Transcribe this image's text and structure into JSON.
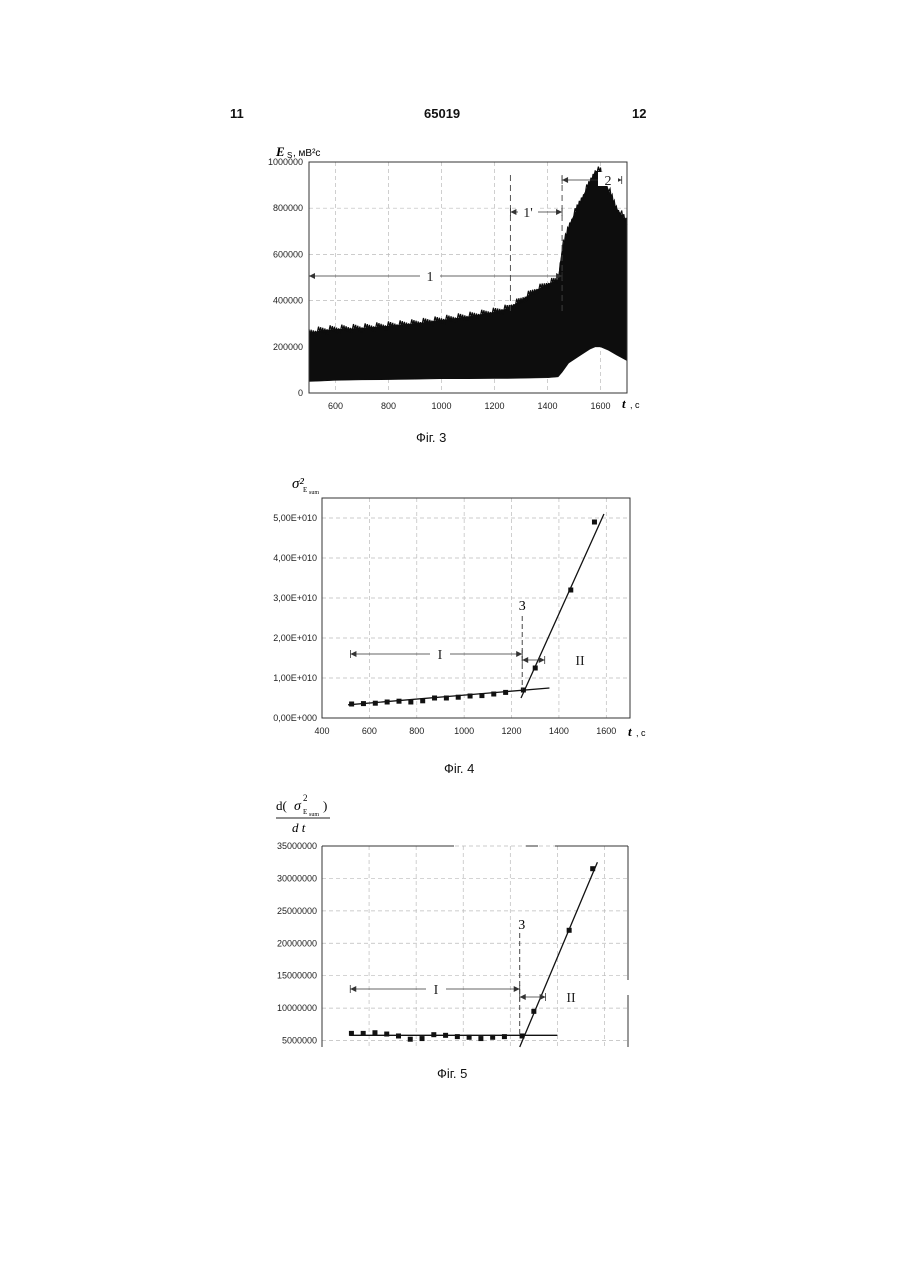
{
  "header": {
    "page_left": "11",
    "patent_number": "65019",
    "page_right": "12"
  },
  "chart_data": [
    {
      "type": "area",
      "ylabel_main": "E",
      "ylabel_sub": "S",
      "ylabel_unit": ", мВ²с",
      "xlabel": "t",
      "xunit": ", с",
      "xlim": [
        500,
        1700
      ],
      "ylim": [
        0,
        1000000
      ],
      "x_ticks": [
        600,
        800,
        1000,
        1200,
        1400,
        1600
      ],
      "y_ticks": [
        0,
        200000,
        400000,
        600000,
        800000,
        1000000
      ],
      "y_tick_labels": [
        "0",
        "200000",
        "400000",
        "600000",
        "800000",
        "1000000"
      ],
      "x_tick_labels": [
        "600",
        "800",
        "1000",
        "1200",
        "1400",
        "1600"
      ],
      "grid": true,
      "series": [
        {
          "x": [
            500,
            550,
            600,
            700,
            800,
            900,
            1000,
            1100,
            1200,
            1250,
            1300,
            1350,
            1400,
            1440,
            1455,
            1480,
            1520,
            1560,
            1580,
            1600,
            1630,
            1660,
            1700
          ],
          "upper": [
            260000,
            270000,
            275000,
            280000,
            290000,
            300000,
            315000,
            330000,
            350000,
            365000,
            400000,
            440000,
            470000,
            490000,
            620000,
            720000,
            820000,
            910000,
            960000,
            960000,
            880000,
            800000,
            740000
          ],
          "lower": [
            50000,
            52000,
            55000,
            57000,
            58000,
            60000,
            62000,
            62000,
            63000,
            63000,
            64000,
            65000,
            66000,
            70000,
            90000,
            130000,
            160000,
            190000,
            200000,
            200000,
            185000,
            165000,
            140000
          ]
        }
      ],
      "annotations": [
        {
          "label": "1",
          "from": 500,
          "to": 1455
        },
        {
          "label": "1'",
          "from": 1260,
          "to": 1455
        },
        {
          "label": "2",
          "from": 1455,
          "to": 1680
        }
      ],
      "caption": "Фіг. 3"
    },
    {
      "type": "scatter",
      "ylabel": "σ²",
      "ylabel_sub": "E",
      "ylabel_subsub": "sum",
      "xlabel": "t",
      "xunit": ", с",
      "xlim": [
        400,
        1700
      ],
      "ylim": [
        0,
        55000000000
      ],
      "x_ticks": [
        400,
        600,
        800,
        1000,
        1200,
        1400,
        1600
      ],
      "x_tick_labels": [
        "400",
        "600",
        "800",
        "1000",
        "1200",
        "1400",
        "1600"
      ],
      "y_ticks": [
        0,
        10000000000,
        20000000000,
        30000000000,
        40000000000,
        50000000000
      ],
      "y_tick_labels": [
        "0,00E+000",
        "1,00E+010",
        "2,00E+010",
        "3,00E+010",
        "4,00E+010",
        "5,00E+010"
      ],
      "grid": true,
      "points": {
        "x": [
          525,
          575,
          625,
          675,
          725,
          775,
          825,
          875,
          925,
          975,
          1025,
          1075,
          1125,
          1175,
          1250,
          1300,
          1450,
          1550
        ],
        "y": [
          3500000000.0,
          3600000000.0,
          3700000000.0,
          4000000000.0,
          4200000000.0,
          4000000000.0,
          4300000000.0,
          5000000000.0,
          5000000000.0,
          5200000000.0,
          5500000000.0,
          5600000000.0,
          6000000000.0,
          6400000000.0,
          7000000000.0,
          12500000000.0,
          32000000000.0,
          49000000000.0
        ]
      },
      "fit_lines": [
        {
          "x": [
            510,
            1360
          ],
          "y": [
            3300000000.0,
            7500000000.0
          ]
        },
        {
          "x": [
            1240,
            1590
          ],
          "y": [
            5000000000.0,
            51000000000.0
          ]
        }
      ],
      "marker_x": 1245,
      "marker_label": "3",
      "annotations": [
        {
          "label": "I",
          "from": 520,
          "to": 1245
        },
        {
          "label": "II",
          "from": 1245,
          "to": 1340
        }
      ],
      "caption": "Фіг. 4"
    },
    {
      "type": "scatter",
      "ylabel_num_left": "d(",
      "ylabel_sigma": "σ",
      "ylabel_sup": "2",
      "ylabel_sub": "E",
      "ylabel_subsub": "sum",
      "ylabel_num_right": ")",
      "ylabel_den": "d t",
      "xlim": [
        400,
        1700
      ],
      "ylim": [
        4000000,
        35000000
      ],
      "y_ticks": [
        5000000,
        10000000,
        15000000,
        20000000,
        25000000,
        30000000,
        35000000
      ],
      "y_tick_labels": [
        "5000000",
        "10000000",
        "15000000",
        "20000000",
        "25000000",
        "30000000",
        "35000000"
      ],
      "grid": true,
      "points": {
        "x": [
          525,
          575,
          625,
          675,
          725,
          775,
          825,
          875,
          925,
          975,
          1025,
          1075,
          1125,
          1175,
          1250,
          1300,
          1450,
          1550
        ],
        "y": [
          6100000.0,
          6100000.0,
          6200000.0,
          6000000.0,
          5700000.0,
          5200000.0,
          5300000.0,
          5900000.0,
          5800000.0,
          5600000.0,
          5500000.0,
          5300000.0,
          5500000.0,
          5600000.0,
          5700000.0,
          9500000.0,
          22000000.0,
          31500000.0
        ]
      },
      "fit_lines": [
        {
          "x": [
            520,
            1400
          ],
          "y": [
            5800000.0,
            5800000.0
          ]
        },
        {
          "x": [
            1240,
            1570
          ],
          "y": [
            4000000.0,
            32500000.0
          ]
        }
      ],
      "marker_x": 1240,
      "marker_label": "3",
      "annotations": [
        {
          "label": "I",
          "from": 520,
          "to": 1240
        },
        {
          "label": "II",
          "from": 1240,
          "to": 1350
        }
      ],
      "caption": "Фіг. 5"
    }
  ]
}
